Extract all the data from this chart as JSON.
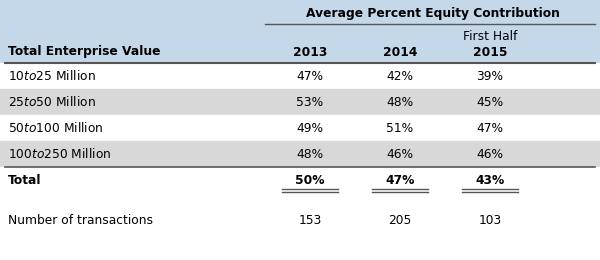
{
  "header_group": "Average Percent Equity Contribution",
  "row_header": "Total Enterprise Value",
  "rows": [
    {
      "label": "$10 to $25 Million",
      "values": [
        "47%",
        "42%",
        "39%"
      ],
      "shaded": false,
      "bold": false
    },
    {
      "label": "$25 to $50 Million",
      "values": [
        "53%",
        "48%",
        "45%"
      ],
      "shaded": true,
      "bold": false
    },
    {
      "label": "$50 to $100 Million",
      "values": [
        "49%",
        "51%",
        "47%"
      ],
      "shaded": false,
      "bold": false
    },
    {
      "label": "$100 to $250 Million",
      "values": [
        "48%",
        "46%",
        "46%"
      ],
      "shaded": true,
      "bold": false
    },
    {
      "label": "Total",
      "values": [
        "50%",
        "47%",
        "43%"
      ],
      "shaded": false,
      "bold": true
    }
  ],
  "footer_label": "Number of transactions",
  "footer_values": [
    "153",
    "205",
    "103"
  ],
  "header_bg": "#c5d8ea",
  "shade_color": "#d8d8d8",
  "white_color": "#ffffff",
  "text_color": "#000000",
  "line_color": "#555555"
}
